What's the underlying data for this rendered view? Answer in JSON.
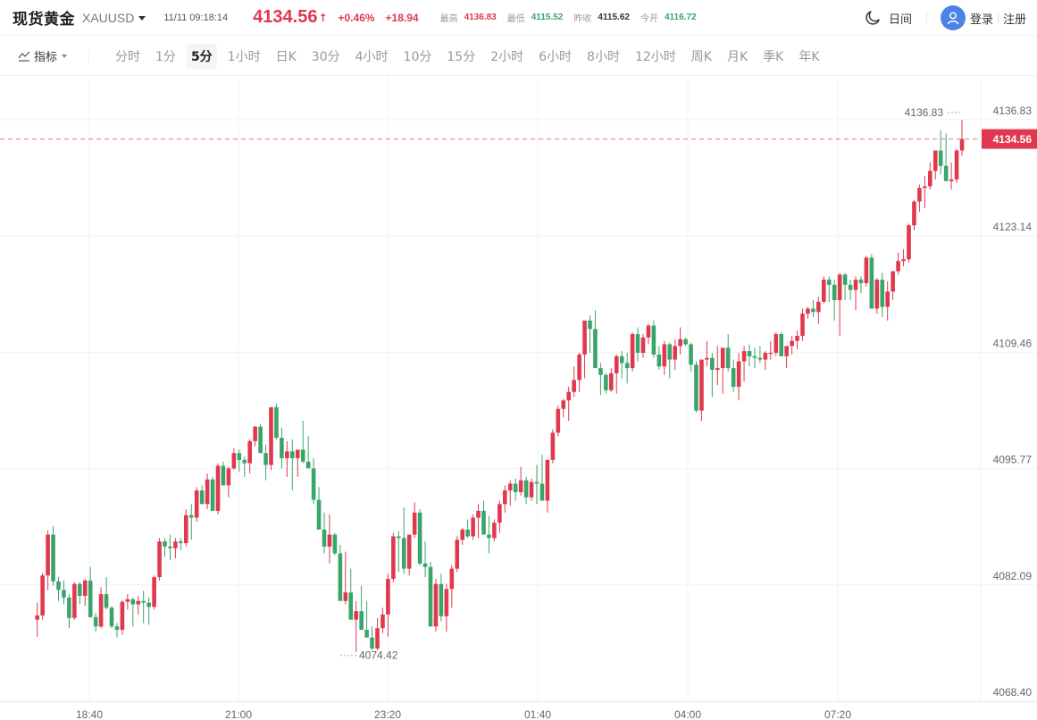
{
  "header": {
    "title": "现货黄金",
    "symbol": "XAUUSD",
    "datetime": "11/11 09:18:14",
    "price": "4134.56",
    "price_arrow": "↑",
    "change_pct": "+0.46%",
    "change_abs": "+18.94",
    "stats": [
      {
        "label": "最高",
        "value": "4136.83",
        "color": "#e0394f"
      },
      {
        "label": "最低",
        "value": "4115.52",
        "color": "#3aa56a"
      },
      {
        "label": "昨收",
        "value": "4115.62",
        "color": "#333333"
      },
      {
        "label": "今开",
        "value": "4116.72",
        "color": "#3aa56a"
      }
    ],
    "theme_label": "日间",
    "login_label": "登录",
    "register_label": "注册"
  },
  "toolbar": {
    "indicator_label": "指标",
    "timeframes": [
      "分时",
      "1分",
      "5分",
      "1小时",
      "日K",
      "30分",
      "4小时",
      "10分",
      "15分",
      "2小时",
      "6小时",
      "8小时",
      "12小时",
      "周K",
      "月K",
      "季K",
      "年K"
    ],
    "active_timeframe": "5分"
  },
  "colors": {
    "up": "#e0394f",
    "down": "#3aa56a",
    "grid": "#f2f2f2",
    "axis_text": "#666666",
    "accent": "#e0394f"
  },
  "chart_data": {
    "type": "candlestick",
    "title": "现货黄金 XAUUSD 5分",
    "xlabel": "",
    "ylabel": "",
    "y_ticks": [
      4136.83,
      4123.14,
      4109.46,
      4095.77,
      4082.09,
      4068.4
    ],
    "x_ticks": [
      "18:40",
      "21:00",
      "23:20",
      "01:40",
      "04:00",
      "07:20"
    ],
    "ylim": [
      4068.4,
      4136.83
    ],
    "grid": true,
    "current_price": 4134.56,
    "high_marker": {
      "label": "4136.83",
      "value": 4136.83
    },
    "low_marker": {
      "label": "4074.42",
      "value": 4074.42
    },
    "ohlc": [
      [
        4078.0,
        4080.0,
        4076.0,
        4078.5
      ],
      [
        4078.5,
        4083.5,
        4078.0,
        4083.2
      ],
      [
        4083.2,
        4088.5,
        4081.5,
        4088.0
      ],
      [
        4088.0,
        4089.0,
        4082.0,
        4082.5
      ],
      [
        4082.5,
        4083.0,
        4080.2,
        4081.5
      ],
      [
        4081.5,
        4082.6,
        4079.8,
        4080.6
      ],
      [
        4080.6,
        4081.0,
        4077.0,
        4078.2
      ],
      [
        4078.2,
        4082.4,
        4078.0,
        4082.2
      ],
      [
        4082.2,
        4082.4,
        4079.8,
        4080.8
      ],
      [
        4080.8,
        4082.8,
        4079.6,
        4082.6
      ],
      [
        4082.6,
        4084.2,
        4078.2,
        4078.3
      ],
      [
        4078.3,
        4078.8,
        4076.6,
        4077.2
      ],
      [
        4077.2,
        4081.8,
        4077.0,
        4081.0
      ],
      [
        4081.0,
        4083.0,
        4079.2,
        4079.4
      ],
      [
        4079.4,
        4079.6,
        4077.0,
        4077.2
      ],
      [
        4077.2,
        4077.6,
        4075.9,
        4076.8
      ],
      [
        4076.8,
        4080.3,
        4076.2,
        4080.1
      ],
      [
        4080.1,
        4081.0,
        4079.2,
        4080.4
      ],
      [
        4080.4,
        4080.6,
        4077.2,
        4079.8
      ],
      [
        4079.8,
        4080.8,
        4078.6,
        4080.2
      ],
      [
        4080.2,
        4081.4,
        4077.6,
        4080.0
      ],
      [
        4080.0,
        4080.6,
        4077.4,
        4079.5
      ],
      [
        4079.5,
        4083.2,
        4079.2,
        4083.0
      ],
      [
        4083.0,
        4087.6,
        4082.6,
        4087.2
      ],
      [
        4087.2,
        4087.6,
        4085.4,
        4086.6
      ],
      [
        4086.6,
        4088.0,
        4085.0,
        4086.4
      ],
      [
        4086.4,
        4087.6,
        4085.2,
        4087.2
      ],
      [
        4087.2,
        4087.6,
        4086.2,
        4087.0
      ],
      [
        4087.0,
        4091.0,
        4086.6,
        4090.3
      ],
      [
        4090.3,
        4091.6,
        4087.4,
        4090.0
      ],
      [
        4090.0,
        4093.6,
        4089.5,
        4093.2
      ],
      [
        4093.2,
        4093.8,
        4091.6,
        4091.6
      ],
      [
        4091.6,
        4095.2,
        4091.0,
        4094.5
      ],
      [
        4094.5,
        4094.8,
        4090.8,
        4090.8
      ],
      [
        4090.8,
        4096.4,
        4090.4,
        4096.1
      ],
      [
        4096.1,
        4096.6,
        4093.8,
        4093.8
      ],
      [
        4093.8,
        4096.0,
        4092.4,
        4095.8
      ],
      [
        4095.8,
        4098.2,
        4095.6,
        4097.6
      ],
      [
        4097.6,
        4098.0,
        4095.4,
        4096.8
      ],
      [
        4096.8,
        4097.2,
        4094.8,
        4096.4
      ],
      [
        4096.4,
        4099.2,
        4095.2,
        4099.0
      ],
      [
        4099.0,
        4100.8,
        4098.4,
        4100.7
      ],
      [
        4100.7,
        4101.0,
        4097.6,
        4097.6
      ],
      [
        4097.6,
        4098.6,
        4094.4,
        4096.2
      ],
      [
        4096.2,
        4103.0,
        4095.6,
        4103.0
      ],
      [
        4103.0,
        4103.4,
        4099.2,
        4099.4
      ],
      [
        4099.4,
        4100.6,
        4095.8,
        4097.0
      ],
      [
        4097.0,
        4099.0,
        4094.8,
        4097.8
      ],
      [
        4097.8,
        4099.2,
        4093.2,
        4097.0
      ],
      [
        4097.0,
        4098.0,
        4094.8,
        4098.0
      ],
      [
        4098.0,
        4101.4,
        4096.4,
        4096.6
      ],
      [
        4096.6,
        4099.6,
        4096.0,
        4095.8
      ],
      [
        4095.8,
        4097.0,
        4091.6,
        4092.1
      ],
      [
        4092.1,
        4093.6,
        4089.0,
        4088.6
      ],
      [
        4088.6,
        4090.6,
        4085.8,
        4086.6
      ],
      [
        4086.6,
        4090.4,
        4084.6,
        4088.0
      ],
      [
        4088.0,
        4088.2,
        4085.6,
        4085.8
      ],
      [
        4085.8,
        4086.8,
        4081.4,
        4080.2
      ],
      [
        4080.2,
        4086.0,
        4079.8,
        4081.2
      ],
      [
        4081.2,
        4084.0,
        4078.8,
        4078.0
      ],
      [
        4078.0,
        4080.2,
        4074.2,
        4079.0
      ],
      [
        4079.0,
        4082.0,
        4077.6,
        4076.8
      ],
      [
        4076.8,
        4080.2,
        4075.9,
        4075.9
      ],
      [
        4075.9,
        4077.2,
        4074.42,
        4074.6
      ],
      [
        4074.6,
        4078.2,
        4074.4,
        4077.0
      ],
      [
        4077.0,
        4079.4,
        4076.4,
        4078.6
      ],
      [
        4078.6,
        4083.4,
        4076.0,
        4082.8
      ],
      [
        4082.8,
        4088.2,
        4082.4,
        4087.8
      ],
      [
        4087.8,
        4088.4,
        4083.6,
        4087.6
      ],
      [
        4087.6,
        4091.2,
        4083.4,
        4084.0
      ],
      [
        4084.0,
        4088.0,
        4083.2,
        4088.0
      ],
      [
        4088.0,
        4091.8,
        4087.6,
        4090.6
      ],
      [
        4090.6,
        4091.0,
        4084.4,
        4084.6
      ],
      [
        4084.6,
        4087.2,
        4083.0,
        4084.2
      ],
      [
        4084.2,
        4084.8,
        4080.2,
        4077.2
      ],
      [
        4077.2,
        4082.8,
        4076.6,
        4082.2
      ],
      [
        4082.2,
        4083.4,
        4077.8,
        4078.4
      ],
      [
        4078.4,
        4082.2,
        4076.6,
        4081.6
      ],
      [
        4081.6,
        4084.4,
        4079.4,
        4084.0
      ],
      [
        4084.0,
        4087.8,
        4083.6,
        4087.4
      ],
      [
        4087.4,
        4088.8,
        4086.8,
        4088.6
      ],
      [
        4088.6,
        4089.8,
        4087.6,
        4087.8
      ],
      [
        4087.8,
        4090.4,
        4087.4,
        4090.0
      ],
      [
        4090.0,
        4091.6,
        4087.6,
        4090.8
      ],
      [
        4090.8,
        4092.0,
        4088.0,
        4088.0
      ],
      [
        4088.0,
        4090.2,
        4085.8,
        4087.6
      ],
      [
        4087.6,
        4089.8,
        4087.2,
        4089.4
      ],
      [
        4089.4,
        4092.0,
        4088.2,
        4091.6
      ],
      [
        4091.6,
        4093.8,
        4090.6,
        4093.2
      ],
      [
        4093.2,
        4094.4,
        4091.4,
        4094.0
      ],
      [
        4094.0,
        4094.6,
        4092.0,
        4093.0
      ],
      [
        4093.0,
        4096.0,
        4092.6,
        4094.4
      ],
      [
        4094.4,
        4094.8,
        4091.6,
        4092.4
      ],
      [
        4092.4,
        4094.6,
        4092.0,
        4094.2
      ],
      [
        4094.2,
        4096.2,
        4091.6,
        4094.0
      ],
      [
        4094.0,
        4097.4,
        4092.6,
        4092.0
      ],
      [
        4092.0,
        4096.0,
        4090.6,
        4096.8
      ],
      [
        4096.8,
        4100.4,
        4096.4,
        4100.0
      ],
      [
        4100.0,
        4103.2,
        4099.6,
        4102.8
      ],
      [
        4102.8,
        4104.0,
        4101.8,
        4103.8
      ],
      [
        4103.8,
        4105.4,
        4101.4,
        4104.8
      ],
      [
        4104.8,
        4107.8,
        4104.2,
        4106.2
      ],
      [
        4106.2,
        4109.4,
        4104.8,
        4109.2
      ],
      [
        4109.2,
        4110.8,
        4106.4,
        4113.2
      ],
      [
        4113.2,
        4113.8,
        4109.4,
        4112.2
      ],
      [
        4112.2,
        4114.4,
        4107.6,
        4107.6
      ],
      [
        4107.6,
        4108.2,
        4104.4,
        4106.8
      ],
      [
        4106.8,
        4107.0,
        4104.6,
        4105.0
      ],
      [
        4105.0,
        4107.6,
        4104.8,
        4107.0
      ],
      [
        4107.0,
        4109.2,
        4104.6,
        4109.0
      ],
      [
        4109.0,
        4109.6,
        4106.4,
        4108.2
      ],
      [
        4108.2,
        4109.4,
        4105.8,
        4107.6
      ],
      [
        4107.6,
        4111.8,
        4107.2,
        4111.6
      ],
      [
        4111.6,
        4112.4,
        4108.4,
        4109.4
      ],
      [
        4109.4,
        4111.6,
        4108.8,
        4111.2
      ],
      [
        4111.2,
        4112.8,
        4110.4,
        4112.6
      ],
      [
        4112.6,
        4113.2,
        4108.8,
        4109.2
      ],
      [
        4109.2,
        4110.2,
        4107.4,
        4107.8
      ],
      [
        4107.8,
        4110.8,
        4106.8,
        4110.4
      ],
      [
        4110.4,
        4110.6,
        4106.4,
        4108.6
      ],
      [
        4108.6,
        4111.0,
        4107.4,
        4110.2
      ],
      [
        4110.2,
        4112.4,
        4109.2,
        4111.0
      ],
      [
        4111.0,
        4111.2,
        4110.2,
        4110.4
      ],
      [
        4110.4,
        4110.6,
        4107.2,
        4108.0
      ],
      [
        4108.0,
        4108.4,
        4102.4,
        4102.6
      ],
      [
        4102.6,
        4108.6,
        4101.4,
        4108.6
      ],
      [
        4108.6,
        4110.8,
        4107.8,
        4108.8
      ],
      [
        4108.8,
        4109.4,
        4104.2,
        4107.4
      ],
      [
        4107.4,
        4110.2,
        4105.6,
        4107.6
      ],
      [
        4107.6,
        4108.4,
        4104.6,
        4110.0
      ],
      [
        4110.0,
        4111.6,
        4107.2,
        4107.6
      ],
      [
        4107.6,
        4108.6,
        4104.8,
        4105.4
      ],
      [
        4105.4,
        4109.4,
        4103.8,
        4108.4
      ],
      [
        4108.4,
        4110.2,
        4106.0,
        4109.6
      ],
      [
        4109.6,
        4110.4,
        4107.8,
        4109.0
      ],
      [
        4109.0,
        4110.0,
        4107.6,
        4108.8
      ],
      [
        4108.8,
        4110.2,
        4108.2,
        4108.6
      ],
      [
        4108.6,
        4109.6,
        4107.4,
        4109.4
      ],
      [
        4109.4,
        4110.8,
        4108.6,
        4109.4
      ],
      [
        4109.4,
        4111.8,
        4109.0,
        4111.6
      ],
      [
        4111.6,
        4111.8,
        4109.0,
        4109.0
      ],
      [
        4109.0,
        4109.6,
        4107.6,
        4110.2
      ],
      [
        4110.2,
        4111.4,
        4109.2,
        4110.8
      ],
      [
        4110.8,
        4112.0,
        4109.8,
        4111.4
      ],
      [
        4111.4,
        4114.6,
        4110.8,
        4114.0
      ],
      [
        4114.0,
        4114.8,
        4113.4,
        4114.6
      ],
      [
        4114.6,
        4115.6,
        4113.6,
        4114.2
      ],
      [
        4114.2,
        4116.0,
        4112.8,
        4115.4
      ],
      [
        4115.4,
        4118.4,
        4115.2,
        4118.0
      ],
      [
        4118.0,
        4118.4,
        4115.4,
        4117.4
      ],
      [
        4117.4,
        4118.0,
        4113.2,
        4115.6
      ],
      [
        4115.6,
        4118.8,
        4111.4,
        4118.6
      ],
      [
        4118.6,
        4118.8,
        4115.6,
        4117.4
      ],
      [
        4117.4,
        4118.0,
        4115.6,
        4116.8
      ],
      [
        4116.8,
        4118.4,
        4114.4,
        4118.0
      ],
      [
        4118.0,
        4118.4,
        4116.4,
        4117.6
      ],
      [
        4117.6,
        4120.8,
        4117.2,
        4120.6
      ],
      [
        4120.6,
        4121.0,
        4114.8,
        4114.6
      ],
      [
        4114.6,
        4118.2,
        4114.0,
        4118.0
      ],
      [
        4118.0,
        4118.8,
        4113.6,
        4114.8
      ],
      [
        4114.8,
        4117.8,
        4113.2,
        4116.6
      ],
      [
        4116.6,
        4119.0,
        4115.6,
        4119.0
      ],
      [
        4119.0,
        4121.2,
        4118.6,
        4120.2
      ],
      [
        4120.2,
        4121.6,
        4119.6,
        4120.4
      ],
      [
        4120.4,
        4124.6,
        4120.0,
        4124.4
      ],
      [
        4124.4,
        4127.4,
        4123.8,
        4127.2
      ],
      [
        4127.2,
        4129.2,
        4126.0,
        4128.8
      ],
      [
        4128.8,
        4130.2,
        4126.4,
        4129.0
      ],
      [
        4129.0,
        4131.8,
        4128.6,
        4130.8
      ],
      [
        4130.8,
        4133.0,
        4129.8,
        4133.2
      ],
      [
        4133.2,
        4135.6,
        4130.4,
        4131.4
      ],
      [
        4131.4,
        4135.2,
        4130.6,
        4129.6
      ],
      [
        4129.6,
        4131.8,
        4128.6,
        4129.8
      ],
      [
        4129.8,
        4133.4,
        4129.4,
        4133.2
      ],
      [
        4133.2,
        4136.83,
        4132.6,
        4134.56
      ]
    ]
  }
}
